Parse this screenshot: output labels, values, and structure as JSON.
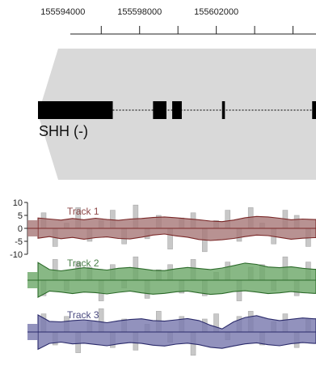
{
  "chart_data": {
    "type": "area",
    "genome_axis": {
      "ticks": [
        155594000,
        155598000,
        155602000
      ],
      "tick_labels": [
        "155594000",
        "155598000",
        "155602000"
      ],
      "range": [
        155592700,
        155607200
      ]
    },
    "gene": {
      "name": "SHH (-)",
      "strand": "-",
      "exons": [
        [
          155592700,
          155596600
        ],
        [
          155598700,
          155599400
        ],
        [
          155599700,
          155600200
        ],
        [
          155602300,
          155602450
        ],
        [
          155607000,
          155607200
        ]
      ],
      "intron_style": "dotted",
      "colors": {
        "region": "#d9d9d9",
        "exon": "#000000"
      }
    },
    "y_axis": {
      "ticks": [
        10,
        5,
        0,
        -5,
        -10
      ],
      "range": [
        -10,
        10
      ]
    },
    "positions": [
      155592700,
      155593300,
      155593900,
      155594500,
      155595100,
      155595700,
      155596300,
      155596900,
      155597500,
      155598100,
      155598700,
      155599300,
      155599900,
      155600500,
      155601100,
      155601700,
      155602300,
      155602900,
      155603500,
      155604100,
      155604700,
      155605300,
      155605900,
      155606500,
      155607100
    ],
    "series": [
      {
        "name": "Track 1",
        "color": "#a87a7a",
        "line_color": "#7a2828",
        "upper": [
          4,
          3.6,
          3.2,
          3.8,
          3.3,
          3.9,
          3.4,
          3.1,
          3.6,
          3.8,
          4.2,
          4.4,
          4.1,
          3.7,
          3.3,
          2.8,
          2.6,
          3.2,
          4.1,
          4.6,
          4.4,
          3.9,
          3.3,
          3.6,
          3.4
        ],
        "lower": [
          -3.8,
          -3.2,
          -4,
          -3.5,
          -4.2,
          -3.6,
          -3.3,
          -3.9,
          -4.1,
          -3.4,
          -2.6,
          -2.2,
          -2.9,
          -3.4,
          -4.3,
          -4.7,
          -4.4,
          -3.9,
          -3.2,
          -2.6,
          -2.8,
          -3.5,
          -4.2,
          -3.8,
          -3.6
        ],
        "bars": [
          6,
          -7,
          2,
          8,
          -5,
          3,
          7,
          -6,
          9,
          -4,
          5,
          -8,
          4,
          6,
          -9,
          3,
          7,
          -5,
          8,
          2,
          -6,
          7,
          5,
          -7,
          6
        ]
      },
      {
        "name": "Track 2",
        "color": "#6ea86a",
        "line_color": "#2c6a2a",
        "upper": [
          6.8,
          4.1,
          3.6,
          4.2,
          4.8,
          4.3,
          3.9,
          4.6,
          4.9,
          4.4,
          3.8,
          3.7,
          4.4,
          4.9,
          4.5,
          4.1,
          4.7,
          5.6,
          6.6,
          6.1,
          5.1,
          4.8,
          5.2,
          4.6,
          4.2
        ],
        "lower": [
          -6.6,
          -4.2,
          -4.6,
          -5.2,
          -4.6,
          -4.8,
          -5.3,
          -4.7,
          -4.2,
          -4.9,
          -5.4,
          -5.1,
          -4.5,
          -4.2,
          -4.9,
          -5.5,
          -5.2,
          -4.4,
          -4.1,
          -4.6,
          -5.2,
          -4.9,
          -4.4,
          -4.8,
          -5.1
        ],
        "bars": [
          -6,
          8,
          -4,
          7,
          5,
          -8,
          6,
          -3,
          9,
          -7,
          4,
          6,
          -5,
          8,
          -6,
          3,
          7,
          -8,
          5,
          6,
          -4,
          9,
          -6,
          7,
          5
        ]
      },
      {
        "name": "Track 3",
        "color": "#7a7aae",
        "line_color": "#2a2a6a",
        "upper": [
          6.6,
          4.1,
          3.9,
          4.4,
          4.7,
          4.2,
          3.6,
          4.3,
          4.8,
          5.1,
          4.4,
          4.2,
          4.7,
          5.2,
          4.4,
          2.6,
          1.2,
          3.9,
          5.6,
          6.3,
          5.1,
          4.4,
          4.9,
          5.4,
          5.1
        ],
        "lower": [
          -6.7,
          -4.4,
          -3.9,
          -4.6,
          -4.3,
          -4.8,
          -5.3,
          -4.6,
          -4.1,
          -4.4,
          -5.1,
          -5.4,
          -4.7,
          -4.3,
          -4.9,
          -5.9,
          -6.3,
          -5.4,
          -4.6,
          -4.2,
          -4.9,
          -5.3,
          -4.5,
          -4.1,
          -4.4
        ],
        "bars": [
          7,
          -5,
          6,
          -8,
          4,
          9,
          -6,
          5,
          -7,
          3,
          8,
          -4,
          6,
          -9,
          5,
          7,
          -3,
          6,
          8,
          -5,
          4,
          7,
          -6,
          5,
          8
        ]
      }
    ]
  }
}
